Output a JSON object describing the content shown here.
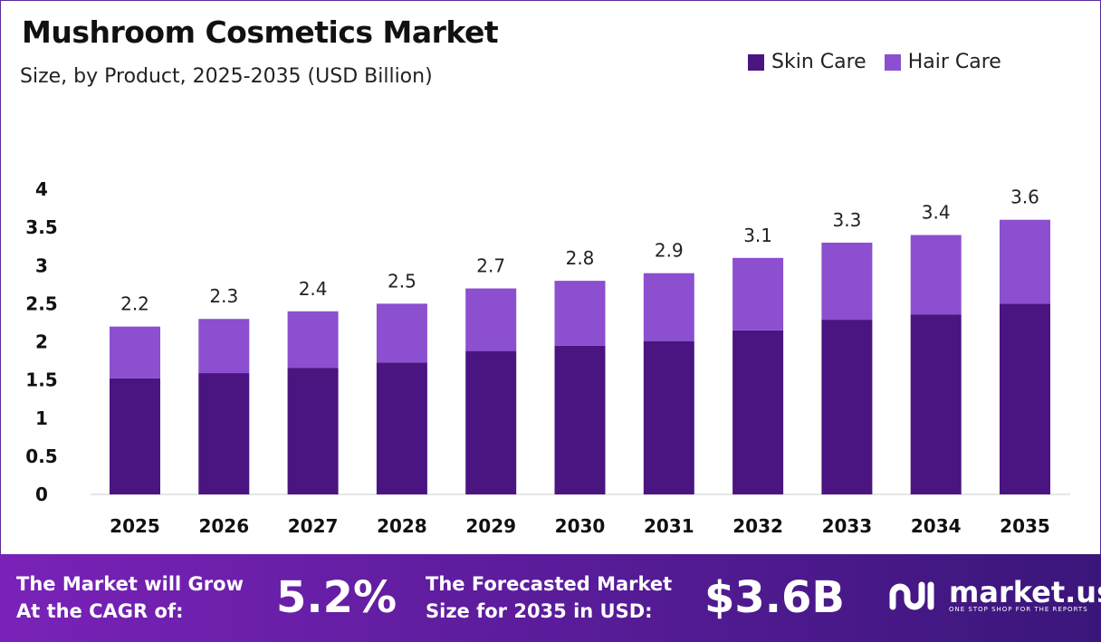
{
  "chart_data": {
    "type": "bar",
    "stacked": true,
    "title": "Mushroom Cosmetics Market",
    "subtitle": "Size, by Product, 2025-2035 (USD Billion)",
    "categories": [
      "2025",
      "2026",
      "2027",
      "2028",
      "2029",
      "2030",
      "2031",
      "2032",
      "2033",
      "2034",
      "2035"
    ],
    "series": [
      {
        "name": "Skin Care",
        "color": "#4a1580",
        "values": [
          1.52,
          1.59,
          1.66,
          1.73,
          1.88,
          1.95,
          2.01,
          2.15,
          2.29,
          2.36,
          2.5
        ]
      },
      {
        "name": "Hair Care",
        "color": "#8c4fd0",
        "values": [
          0.68,
          0.71,
          0.74,
          0.77,
          0.82,
          0.85,
          0.89,
          0.95,
          1.01,
          1.04,
          1.1
        ]
      }
    ],
    "total_labels": [
      "2.2",
      "2.3",
      "2.4",
      "2.5",
      "2.7",
      "2.8",
      "2.9",
      "3.1",
      "3.3",
      "3.4",
      "3.6"
    ],
    "yticks": [
      "0",
      "0.5",
      "1",
      "1.5",
      "2",
      "2.5",
      "3",
      "3.5",
      "4"
    ],
    "ylim": [
      0,
      4
    ],
    "grid": false,
    "legend_position": "top-right"
  },
  "footer": {
    "cagr_text_1": "The Market will Grow",
    "cagr_text_2": "At the CAGR of:",
    "cagr_value": "5.2%",
    "forecast_text_1": "The Forecasted Market",
    "forecast_text_2": "Size for 2035 in USD:",
    "forecast_value": "$3.6B",
    "brand": "market.us",
    "brand_tagline": "ONE STOP SHOP FOR THE REPORTS"
  }
}
